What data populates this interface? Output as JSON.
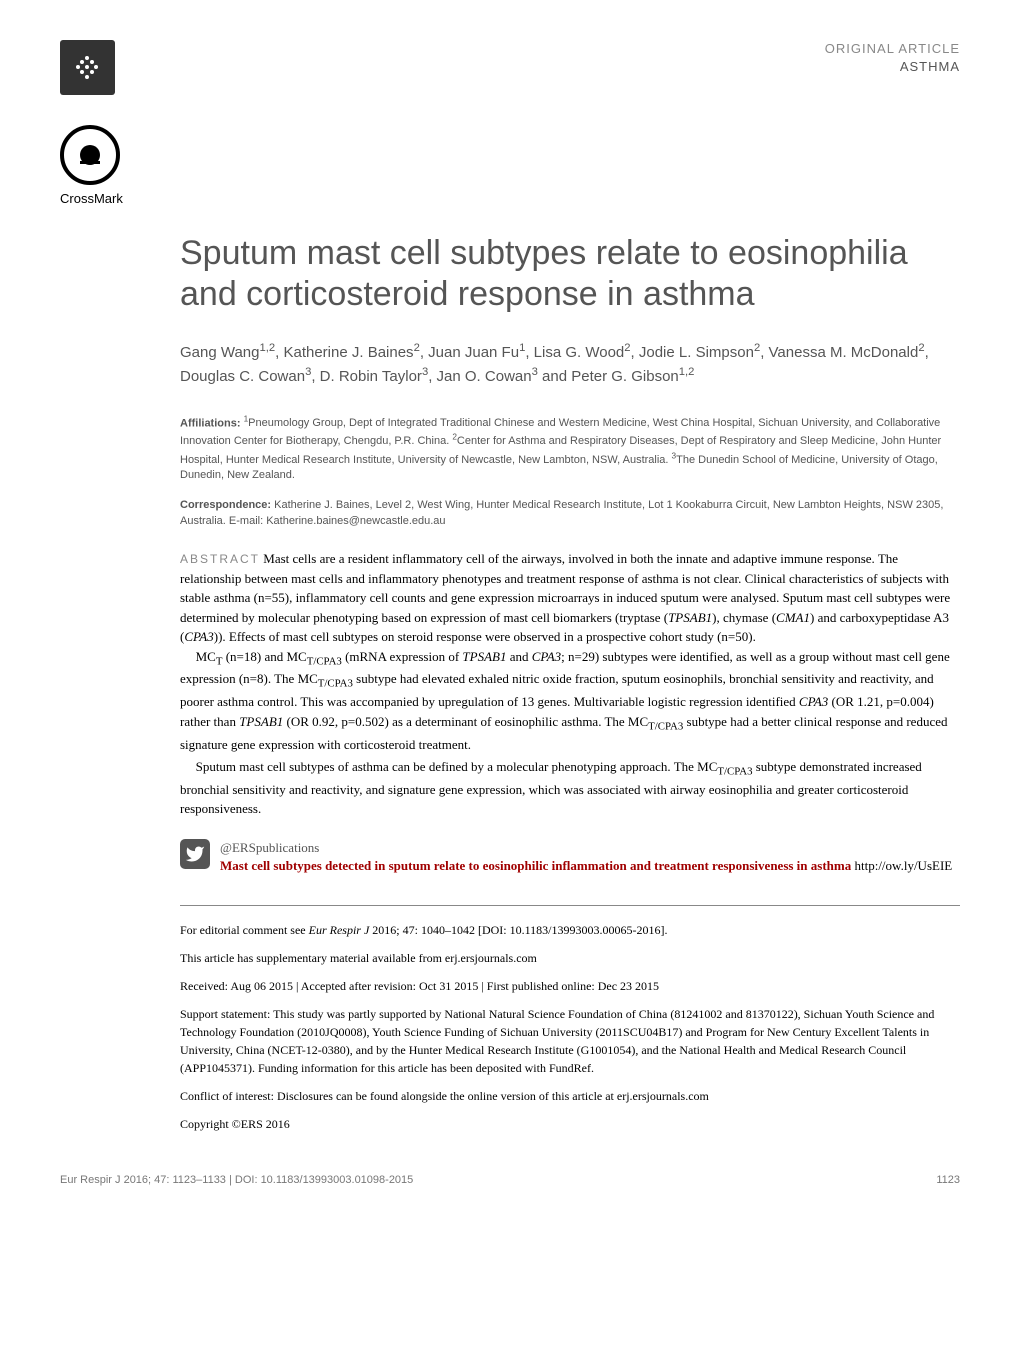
{
  "header": {
    "article_type": "ORIGINAL ARTICLE",
    "section": "ASTHMA"
  },
  "crossmark": {
    "label": "CrossMark"
  },
  "title": "Sputum mast cell subtypes relate to eosinophilia and corticosteroid response in asthma",
  "authors_html": "Gang Wang<sup>1,2</sup>, Katherine J. Baines<sup>2</sup>, Juan Juan Fu<sup>1</sup>, Lisa G. Wood<sup>2</sup>, Jodie L. Simpson<sup>2</sup>, Vanessa M. McDonald<sup>2</sup>, Douglas C. Cowan<sup>3</sup>, D. Robin Taylor<sup>3</sup>, Jan O. Cowan<sup>3</sup> and Peter G. Gibson<sup>1,2</sup>",
  "affiliations": {
    "label": "Affiliations:",
    "text_html": " <sup>1</sup>Pneumology Group, Dept of Integrated Traditional Chinese and Western Medicine, West China Hospital, Sichuan University, and Collaborative Innovation Center for Biotherapy, Chengdu, P.R. China. <sup>2</sup>Center for Asthma and Respiratory Diseases, Dept of Respiratory and Sleep Medicine, John Hunter Hospital, Hunter Medical Research Institute, University of Newcastle, New Lambton, NSW, Australia. <sup>3</sup>The Dunedin School of Medicine, University of Otago, Dunedin, New Zealand."
  },
  "correspondence": {
    "label": "Correspondence:",
    "text": " Katherine J. Baines, Level 2, West Wing, Hunter Medical Research Institute, Lot 1 Kookaburra Circuit, New Lambton Heights, NSW 2305, Australia. E-mail: Katherine.baines@newcastle.edu.au"
  },
  "abstract": {
    "label": "ABSTRACT",
    "p1": " Mast cells are a resident inflammatory cell of the airways, involved in both the innate and adaptive immune response. The relationship between mast cells and inflammatory phenotypes and treatment response of asthma is not clear.",
    "p2": "Clinical characteristics of subjects with stable asthma (n=55), inflammatory cell counts and gene expression microarrays in induced sputum were analysed. Sputum mast cell subtypes were determined by molecular phenotyping based on expression of mast cell biomarkers (tryptase (<i>TPSAB1</i>), chymase (<i>CMA1</i>) and carboxypeptidase A3 (<i>CPA3</i>)). Effects of mast cell subtypes on steroid response were observed in a prospective cohort study (n=50).",
    "p3": "MC<sub>T</sub> (n=18) and MC<sub>T/CPA3</sub> (mRNA expression of <i>TPSAB1</i> and <i>CPA3</i>; n=29) subtypes were identified, as well as a group without mast cell gene expression (n=8). The MC<sub>T/CPA3</sub> subtype had elevated exhaled nitric oxide fraction, sputum eosinophils, bronchial sensitivity and reactivity, and poorer asthma control. This was accompanied by upregulation of 13 genes. Multivariable logistic regression identified <i>CPA3</i> (OR 1.21, p=0.004) rather than <i>TPSAB1</i> (OR 0.92, p=0.502) as a determinant of eosinophilic asthma. The MC<sub>T/CPA3</sub> subtype had a better clinical response and reduced signature gene expression with corticosteroid treatment.",
    "p4": "Sputum mast cell subtypes of asthma can be defined by a molecular phenotyping approach. The MC<sub>T/CPA3</sub> subtype demonstrated increased bronchial sensitivity and reactivity, and signature gene expression, which was associated with airway eosinophilia and greater corticosteroid responsiveness."
  },
  "twitter": {
    "handle": "@ERSpublications",
    "highlight": "Mast cell subtypes detected in sputum relate to eosinophilic inflammation and treatment responsiveness in asthma",
    "link": " http://ow.ly/UsEIE"
  },
  "footnotes": {
    "editorial": "For editorial comment see <i>Eur Respir J</i> 2016; 47: 1040–1042 [DOI: 10.1183/13993003.00065-2016].",
    "supplementary": "This article has supplementary material available from erj.ersjournals.com",
    "dates": "Received: Aug 06 2015 | Accepted after revision: Oct 31 2015 | First published online: Dec 23 2015",
    "support": "Support statement: This study was partly supported by National Natural Science Foundation of China (81241002 and 81370122), Sichuan Youth Science and Technology Foundation (2010JQ0008), Youth Science Funding of Sichuan University (2011SCU04B17) and Program for New Century Excellent Talents in University, China (NCET-12-0380), and by the Hunter Medical Research Institute (G1001054), and the National Health and Medical Research Council (APP1045371). Funding information for this article has been deposited with FundRef.",
    "conflict": "Conflict of interest: Disclosures can be found alongside the online version of this article at erj.ersjournals.com",
    "copyright": "Copyright ©ERS 2016"
  },
  "footer": {
    "citation": "Eur Respir J 2016; 47: 1123–1133 | DOI: 10.1183/13993003.01098-2015",
    "page": "1123"
  },
  "colors": {
    "header_text": "#555555",
    "highlight": "#a00000",
    "footnote": "#777777"
  },
  "typography": {
    "title_fontsize": 34,
    "body_fontsize": 13,
    "footnote_fontsize": 12
  }
}
